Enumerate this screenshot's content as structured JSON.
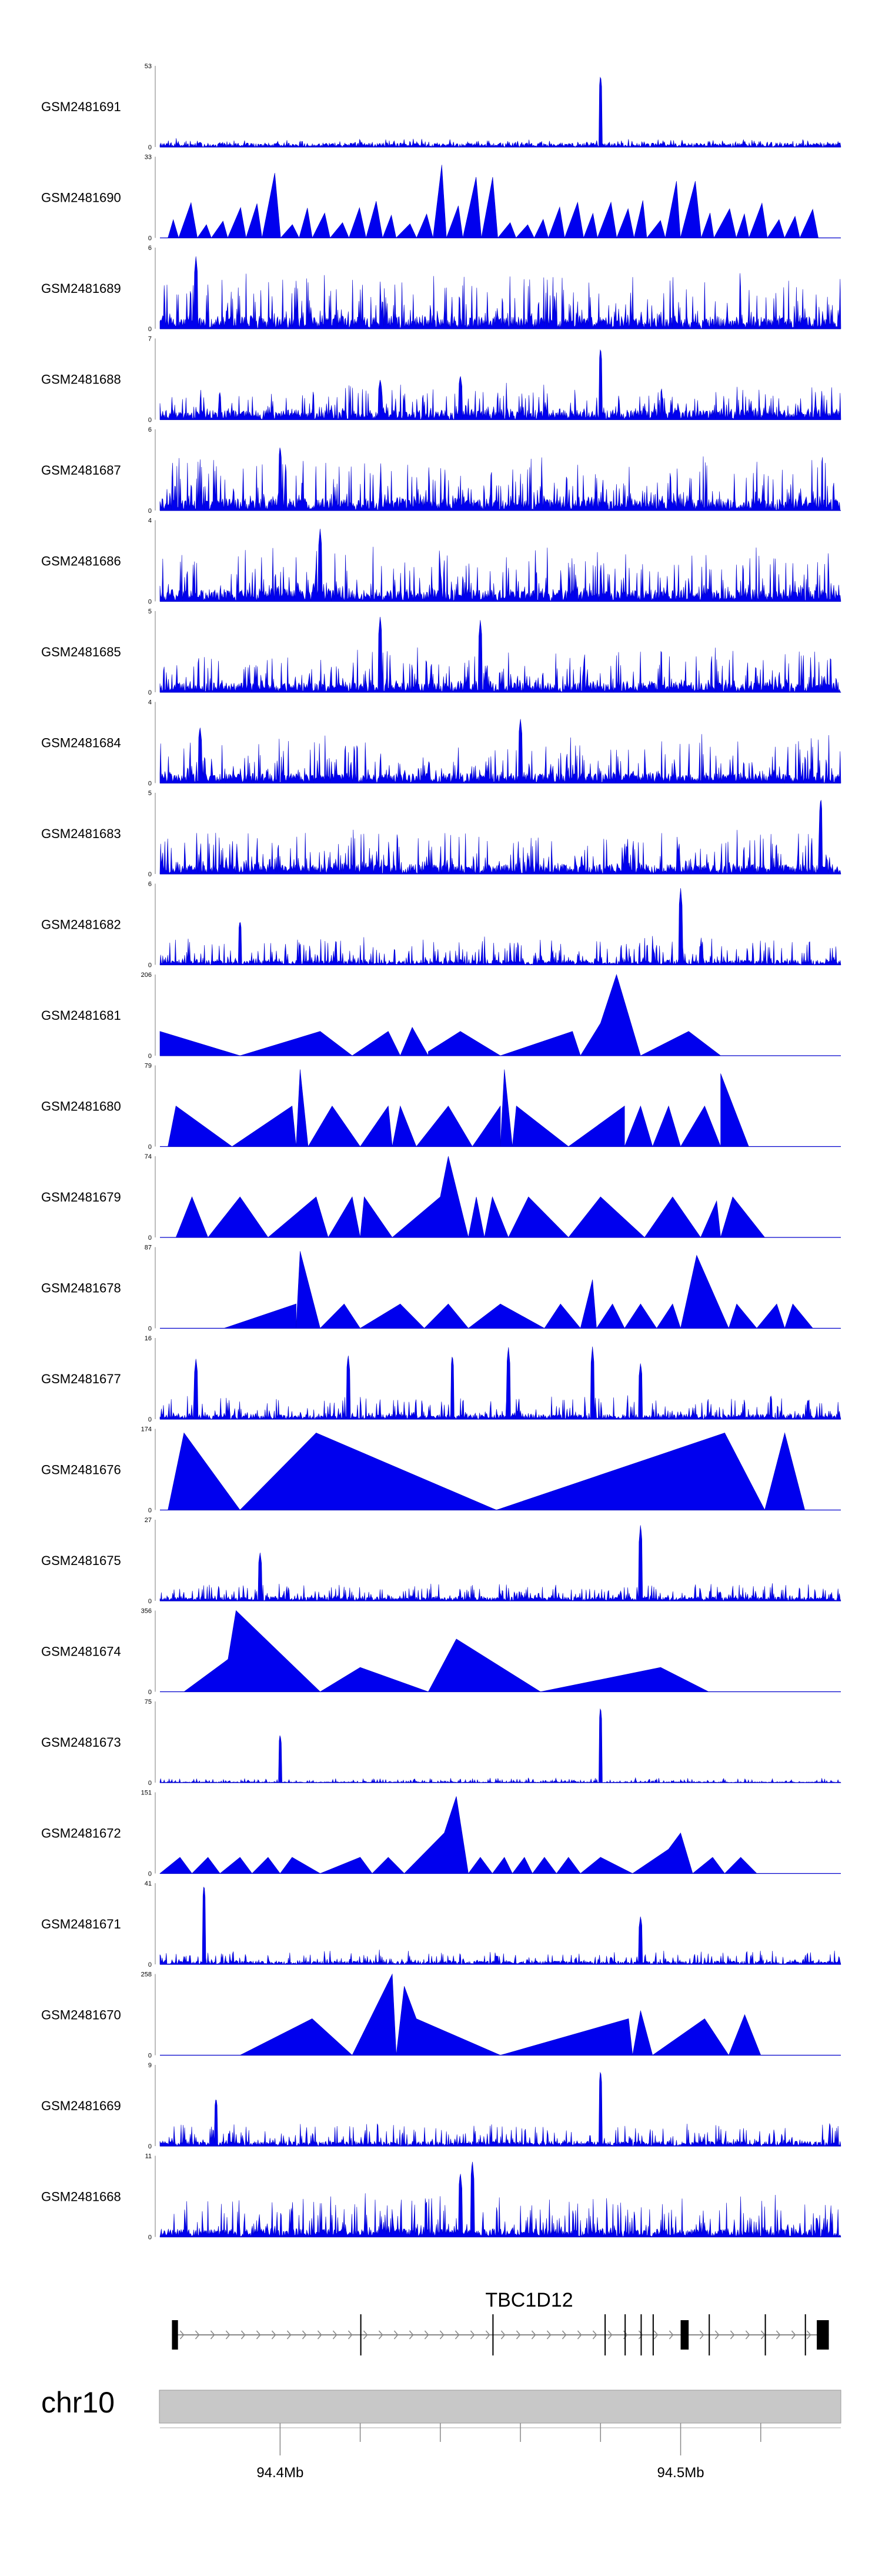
{
  "chart_data": {
    "type": "area",
    "title": "",
    "xlabel": "chr10",
    "ylabel": "",
    "chromosome": "chr10",
    "xlim": [
      94.37,
      94.54
    ],
    "x_tick_labels": [
      {
        "pos": 94.4,
        "label": "94.4Mb"
      },
      {
        "pos": 94.5,
        "label": "94.5Mb"
      }
    ],
    "minor_ticks": [
      94.4,
      94.42,
      94.44,
      94.46,
      94.48,
      94.5,
      94.52
    ],
    "tracks": [
      {
        "name": "GSM2481691",
        "ymax": 53,
        "ymin": 0,
        "style": "dense",
        "seed": 1,
        "base": 0.05,
        "noise": 0.06,
        "peaks": [
          [
            94.48,
            0.9
          ],
          [
            94.38,
            0.06
          ]
        ]
      },
      {
        "name": "GSM2481690",
        "ymax": 33,
        "ymin": 0,
        "style": "sparse",
        "seed": 2,
        "kind": "spikes",
        "spacing": 0.0042,
        "h": 0.3,
        "hvar": 0.35,
        "peaks": [
          [
            94.44,
            0.9
          ],
          [
            94.397,
            0.8
          ],
          [
            94.45,
            0.75
          ],
          [
            94.5,
            0.7
          ]
        ]
      },
      {
        "name": "GSM2481689",
        "ymax": 6,
        "ymin": 0,
        "style": "dense",
        "seed": 3,
        "base": 0.15,
        "noise": 0.55,
        "peaks": [
          [
            94.379,
            0.9
          ]
        ]
      },
      {
        "name": "GSM2481688",
        "ymax": 7,
        "ymin": 0,
        "style": "dense",
        "seed": 4,
        "base": 0.12,
        "noise": 0.35,
        "peaks": [
          [
            94.48,
            0.9
          ],
          [
            94.445,
            0.55
          ],
          [
            94.425,
            0.5
          ]
        ]
      },
      {
        "name": "GSM2481687",
        "ymax": 6,
        "ymin": 0,
        "style": "dense",
        "seed": 5,
        "base": 0.15,
        "noise": 0.55,
        "peaks": [
          [
            94.4,
            0.8
          ]
        ]
      },
      {
        "name": "GSM2481686",
        "ymax": 4,
        "ymin": 0,
        "style": "dense",
        "seed": 6,
        "base": 0.15,
        "noise": 0.55,
        "peaks": [
          [
            94.41,
            0.9
          ]
        ]
      },
      {
        "name": "GSM2481685",
        "ymax": 5,
        "ymin": 0,
        "style": "dense",
        "seed": 7,
        "base": 0.12,
        "noise": 0.45,
        "peaks": [
          [
            94.425,
            0.95
          ],
          [
            94.45,
            0.9
          ]
        ]
      },
      {
        "name": "GSM2481684",
        "ymax": 4,
        "ymin": 0,
        "style": "dense",
        "seed": 8,
        "base": 0.12,
        "noise": 0.5,
        "peaks": [
          [
            94.38,
            0.7
          ],
          [
            94.46,
            0.8
          ]
        ]
      },
      {
        "name": "GSM2481683",
        "ymax": 5,
        "ymin": 0,
        "style": "dense",
        "seed": 9,
        "base": 0.12,
        "noise": 0.45,
        "peaks": [
          [
            94.535,
            0.95
          ]
        ]
      },
      {
        "name": "GSM2481682",
        "ymax": 6,
        "ymin": 0,
        "style": "dense",
        "seed": 10,
        "base": 0.06,
        "noise": 0.3,
        "peaks": [
          [
            94.5,
            0.95
          ],
          [
            94.39,
            0.55
          ]
        ]
      },
      {
        "name": "GSM2481681",
        "ymax": 206,
        "ymin": 0,
        "style": "tri",
        "seed": 11,
        "points": [
          [
            94.37,
            0.0
          ],
          [
            94.37,
            0.3
          ],
          [
            94.39,
            0.0
          ],
          [
            94.41,
            0.3
          ],
          [
            94.418,
            0.0
          ],
          [
            94.427,
            0.3
          ],
          [
            94.43,
            0.0
          ],
          [
            94.433,
            0.35
          ],
          [
            94.437,
            0.0
          ],
          [
            94.437,
            0.05
          ],
          [
            94.445,
            0.3
          ],
          [
            94.455,
            0.0
          ],
          [
            94.473,
            0.3
          ],
          [
            94.475,
            0.0
          ],
          [
            94.48,
            0.4
          ],
          [
            94.484,
            1.0
          ],
          [
            94.49,
            0.0
          ],
          [
            94.502,
            0.3
          ],
          [
            94.51,
            0.0
          ]
        ]
      },
      {
        "name": "GSM2481680",
        "ymax": 79,
        "ymin": 0,
        "style": "tri",
        "seed": 12,
        "points": [
          [
            94.372,
            0.0
          ],
          [
            94.374,
            0.5
          ],
          [
            94.388,
            0.0
          ],
          [
            94.403,
            0.5
          ],
          [
            94.404,
            0.0
          ],
          [
            94.405,
            0.95
          ],
          [
            94.407,
            0.0
          ],
          [
            94.413,
            0.5
          ],
          [
            94.42,
            0.0
          ],
          [
            94.427,
            0.5
          ],
          [
            94.428,
            0.0
          ],
          [
            94.43,
            0.5
          ],
          [
            94.434,
            0.0
          ],
          [
            94.442,
            0.5
          ],
          [
            94.448,
            0.0
          ],
          [
            94.455,
            0.5
          ],
          [
            94.455,
            0.0
          ],
          [
            94.456,
            0.95
          ],
          [
            94.458,
            0.0
          ],
          [
            94.459,
            0.5
          ],
          [
            94.472,
            0.0
          ],
          [
            94.486,
            0.5
          ],
          [
            94.486,
            0.0
          ],
          [
            94.49,
            0.5
          ],
          [
            94.493,
            0.0
          ],
          [
            94.497,
            0.5
          ],
          [
            94.5,
            0.0
          ],
          [
            94.506,
            0.5
          ],
          [
            94.51,
            0.0
          ],
          [
            94.51,
            0.9
          ],
          [
            94.517,
            0.0
          ]
        ]
      },
      {
        "name": "GSM2481679",
        "ymax": 74,
        "ymin": 0,
        "style": "tri",
        "seed": 13,
        "points": [
          [
            94.374,
            0.0
          ],
          [
            94.378,
            0.5
          ],
          [
            94.382,
            0.0
          ],
          [
            94.39,
            0.5
          ],
          [
            94.397,
            0.0
          ],
          [
            94.409,
            0.5
          ],
          [
            94.412,
            0.0
          ],
          [
            94.418,
            0.5
          ],
          [
            94.42,
            0.0
          ],
          [
            94.421,
            0.5
          ],
          [
            94.428,
            0.0
          ],
          [
            94.44,
            0.5
          ],
          [
            94.442,
            1.0
          ],
          [
            94.447,
            0.0
          ],
          [
            94.449,
            0.5
          ],
          [
            94.451,
            0.0
          ],
          [
            94.453,
            0.5
          ],
          [
            94.457,
            0.0
          ],
          [
            94.462,
            0.5
          ],
          [
            94.472,
            0.0
          ],
          [
            94.48,
            0.5
          ],
          [
            94.491,
            0.0
          ],
          [
            94.498,
            0.5
          ],
          [
            94.505,
            0.0
          ],
          [
            94.509,
            0.45
          ],
          [
            94.51,
            0.0
          ],
          [
            94.513,
            0.5
          ],
          [
            94.521,
            0.0
          ]
        ]
      },
      {
        "name": "GSM2481678",
        "ymax": 87,
        "ymin": 0,
        "style": "tri",
        "seed": 14,
        "points": [
          [
            94.386,
            0.0
          ],
          [
            94.404,
            0.3
          ],
          [
            94.404,
            0.0
          ],
          [
            94.405,
            0.95
          ],
          [
            94.41,
            0.0
          ],
          [
            94.416,
            0.3
          ],
          [
            94.42,
            0.0
          ],
          [
            94.43,
            0.3
          ],
          [
            94.436,
            0.0
          ],
          [
            94.442,
            0.3
          ],
          [
            94.447,
            0.0
          ],
          [
            94.455,
            0.3
          ],
          [
            94.466,
            0.0
          ],
          [
            94.47,
            0.3
          ],
          [
            94.475,
            0.0
          ],
          [
            94.478,
            0.6
          ],
          [
            94.479,
            0.0
          ],
          [
            94.483,
            0.3
          ],
          [
            94.486,
            0.0
          ],
          [
            94.49,
            0.3
          ],
          [
            94.494,
            0.0
          ],
          [
            94.498,
            0.3
          ],
          [
            94.5,
            0.0
          ],
          [
            94.504,
            0.9
          ],
          [
            94.512,
            0.0
          ],
          [
            94.514,
            0.3
          ],
          [
            94.519,
            0.0
          ],
          [
            94.524,
            0.3
          ],
          [
            94.526,
            0.0
          ],
          [
            94.528,
            0.3
          ],
          [
            94.533,
            0.0
          ]
        ]
      },
      {
        "name": "GSM2481677",
        "ymax": 16,
        "ymin": 0,
        "style": "dense",
        "seed": 15,
        "base": 0.06,
        "noise": 0.25,
        "peaks": [
          [
            94.379,
            0.75
          ],
          [
            94.417,
            0.8
          ],
          [
            94.443,
            0.8
          ],
          [
            94.457,
            0.9
          ],
          [
            94.478,
            0.9
          ],
          [
            94.49,
            0.7
          ]
        ]
      },
      {
        "name": "GSM2481676",
        "ymax": 174,
        "ymin": 0,
        "style": "tri",
        "seed": 16,
        "points": [
          [
            94.372,
            0.0
          ],
          [
            94.376,
            0.95
          ],
          [
            94.39,
            0.0
          ],
          [
            94.409,
            0.95
          ],
          [
            94.454,
            0.0
          ],
          [
            94.511,
            0.95
          ],
          [
            94.521,
            0.0
          ],
          [
            94.526,
            0.95
          ],
          [
            94.531,
            0.0
          ]
        ]
      },
      {
        "name": "GSM2481675",
        "ymax": 27,
        "ymin": 0,
        "style": "dense",
        "seed": 17,
        "base": 0.05,
        "noise": 0.18,
        "peaks": [
          [
            94.49,
            0.95
          ],
          [
            94.395,
            0.6
          ]
        ]
      },
      {
        "name": "GSM2481674",
        "ymax": 356,
        "ymin": 0,
        "style": "tri",
        "seed": 18,
        "points": [
          [
            94.376,
            0.0
          ],
          [
            94.387,
            0.4
          ],
          [
            94.389,
            1.0
          ],
          [
            94.41,
            0.0
          ],
          [
            94.42,
            0.3
          ],
          [
            94.437,
            0.0
          ],
          [
            94.444,
            0.65
          ],
          [
            94.465,
            0.0
          ],
          [
            94.495,
            0.3
          ],
          [
            94.507,
            0.0
          ]
        ]
      },
      {
        "name": "GSM2481673",
        "ymax": 75,
        "ymin": 0,
        "style": "dense",
        "seed": 19,
        "base": 0.01,
        "noise": 0.05,
        "peaks": [
          [
            94.4,
            0.6
          ],
          [
            94.48,
            0.95
          ]
        ]
      },
      {
        "name": "GSM2481672",
        "ymax": 151,
        "ymin": 0,
        "style": "tri",
        "seed": 19,
        "points": [
          [
            94.37,
            0.0
          ],
          [
            94.375,
            0.2
          ],
          [
            94.378,
            0.0
          ],
          [
            94.382,
            0.2
          ],
          [
            94.385,
            0.0
          ],
          [
            94.39,
            0.2
          ],
          [
            94.393,
            0.0
          ],
          [
            94.397,
            0.2
          ],
          [
            94.4,
            0.0
          ],
          [
            94.403,
            0.2
          ],
          [
            94.41,
            0.0
          ],
          [
            94.42,
            0.2
          ],
          [
            94.423,
            0.0
          ],
          [
            94.427,
            0.2
          ],
          [
            94.431,
            0.0
          ],
          [
            94.441,
            0.5
          ],
          [
            94.444,
            0.95
          ],
          [
            94.447,
            0.0
          ],
          [
            94.45,
            0.2
          ],
          [
            94.453,
            0.0
          ],
          [
            94.456,
            0.2
          ],
          [
            94.458,
            0.0
          ],
          [
            94.461,
            0.2
          ],
          [
            94.463,
            0.0
          ],
          [
            94.466,
            0.2
          ],
          [
            94.469,
            0.0
          ],
          [
            94.472,
            0.2
          ],
          [
            94.475,
            0.0
          ],
          [
            94.48,
            0.2
          ],
          [
            94.488,
            0.0
          ],
          [
            94.497,
            0.3
          ],
          [
            94.5,
            0.5
          ],
          [
            94.503,
            0.0
          ],
          [
            94.508,
            0.2
          ],
          [
            94.511,
            0.0
          ],
          [
            94.515,
            0.2
          ],
          [
            94.519,
            0.0
          ]
        ]
      },
      {
        "name": "GSM2481671",
        "ymax": 41,
        "ymin": 0,
        "style": "dense",
        "seed": 20,
        "base": 0.04,
        "noise": 0.15,
        "peaks": [
          [
            94.381,
            1.0
          ],
          [
            94.49,
            0.6
          ]
        ]
      },
      {
        "name": "GSM2481670",
        "ymax": 258,
        "ymin": 0,
        "style": "tri",
        "seed": 21,
        "points": [
          [
            94.39,
            0.0
          ],
          [
            94.408,
            0.45
          ],
          [
            94.418,
            0.0
          ],
          [
            94.428,
            1.0
          ],
          [
            94.429,
            0.0
          ],
          [
            94.431,
            0.85
          ],
          [
            94.434,
            0.45
          ],
          [
            94.455,
            0.0
          ],
          [
            94.487,
            0.45
          ],
          [
            94.488,
            0.0
          ],
          [
            94.49,
            0.55
          ],
          [
            94.493,
            0.0
          ],
          [
            94.506,
            0.45
          ],
          [
            94.512,
            0.0
          ],
          [
            94.516,
            0.5
          ],
          [
            94.52,
            0.0
          ]
        ]
      },
      {
        "name": "GSM2481669",
        "ymax": 9,
        "ymin": 0,
        "style": "dense",
        "seed": 22,
        "base": 0.06,
        "noise": 0.25,
        "peaks": [
          [
            94.48,
            0.95
          ],
          [
            94.384,
            0.6
          ]
        ]
      },
      {
        "name": "GSM2481668",
        "ymax": 11,
        "ymin": 0,
        "style": "dense",
        "seed": 23,
        "base": 0.1,
        "noise": 0.45,
        "peaks": [
          [
            94.448,
            0.95
          ],
          [
            94.445,
            0.8
          ]
        ]
      }
    ],
    "gene": {
      "name": "TBC1D12",
      "start": 94.373,
      "end": 94.537,
      "strand": "+",
      "exons": [
        [
          94.373,
          94.3745
        ],
        [
          94.42,
          94.4203
        ],
        [
          94.453,
          94.4533
        ],
        [
          94.481,
          94.4813
        ],
        [
          94.486,
          94.4863
        ],
        [
          94.49,
          94.4903
        ],
        [
          94.493,
          94.4933
        ],
        [
          94.5,
          94.502
        ],
        [
          94.507,
          94.5073
        ],
        [
          94.521,
          94.5213
        ],
        [
          94.531,
          94.5313
        ],
        [
          94.534,
          94.537
        ]
      ]
    }
  }
}
